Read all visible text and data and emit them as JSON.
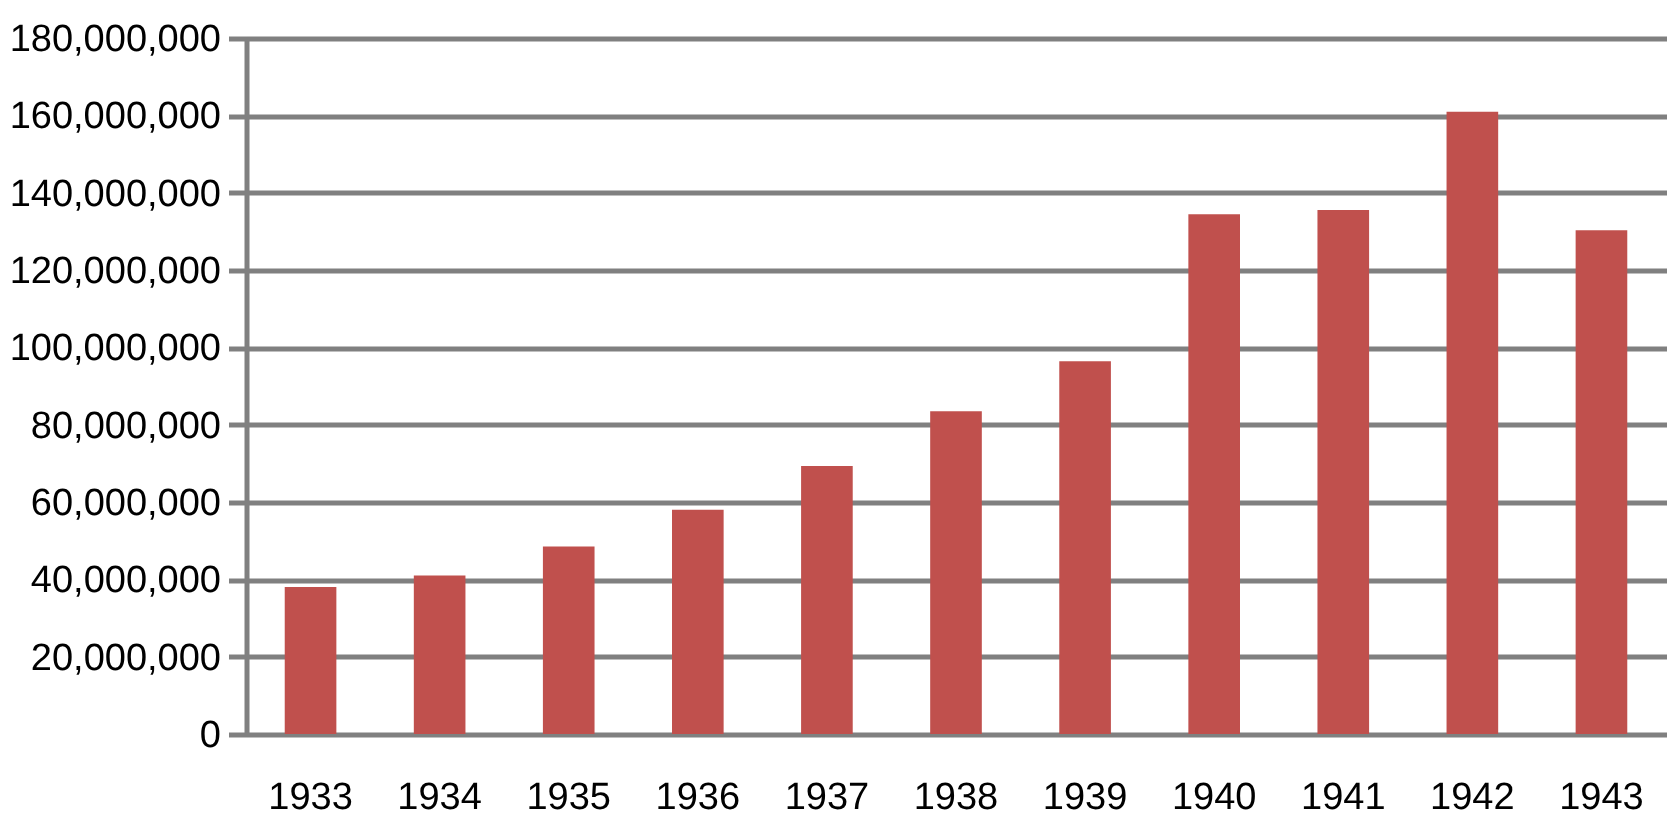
{
  "chart_data": {
    "type": "bar",
    "categories": [
      "1933",
      "1934",
      "1935",
      "1936",
      "1937",
      "1938",
      "1939",
      "1940",
      "1941",
      "1942",
      "1943"
    ],
    "values": [
      38000000,
      41000000,
      48500000,
      58000000,
      69300000,
      83500000,
      96400000,
      134400000,
      135500000,
      160900000,
      130300000
    ],
    "color": "#c0504d",
    "ylim": [
      0,
      180000000
    ],
    "yticks": [
      0,
      {
        "value": 20000000,
        "label": "20,000,000"
      },
      {
        "value": 40000000,
        "label": "40,000,000"
      },
      {
        "value": 60000000,
        "label": "60,000,000"
      },
      {
        "value": 80000000,
        "label": "80,000,000"
      },
      {
        "value": 100000000,
        "label": "100,000,000"
      },
      {
        "value": 120000000,
        "label": "120,000,000"
      },
      {
        "value": 140000000,
        "label": "140,000,000"
      },
      {
        "value": 160000000,
        "label": "160,000,000"
      },
      {
        "value": 180000000,
        "label": "180,000,000"
      }
    ],
    "grid": "y"
  }
}
